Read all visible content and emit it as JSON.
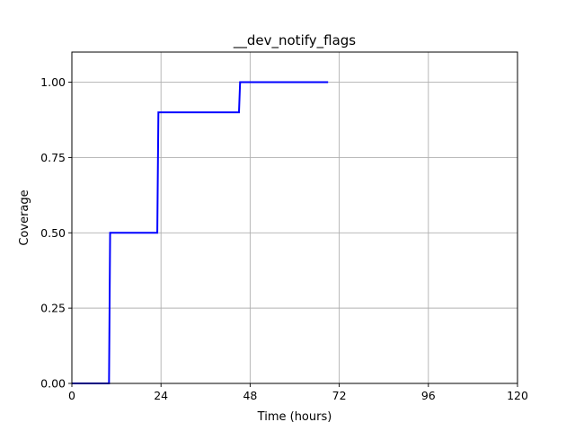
{
  "chart_data": {
    "type": "line",
    "title": "__dev_notify_flags",
    "xlabel": "Time (hours)",
    "ylabel": "Coverage",
    "xlim": [
      0,
      120
    ],
    "ylim": [
      0,
      1.1
    ],
    "xticks": [
      0,
      24,
      48,
      72,
      96,
      120
    ],
    "xtick_labels": [
      "0",
      "24",
      "48",
      "72",
      "96",
      "120"
    ],
    "yticks": [
      0,
      0.25,
      0.5,
      0.75,
      1.0
    ],
    "ytick_labels": [
      "0.00",
      "0.25",
      "0.50",
      "0.75",
      "1.00"
    ],
    "grid": true,
    "series": [
      {
        "color": "#0000ff",
        "x": [
          0,
          10,
          10.3,
          23,
          23.3,
          45,
          45.3,
          69
        ],
        "y": [
          0,
          0,
          0.5,
          0.5,
          0.9,
          0.9,
          1.0,
          1.0
        ]
      }
    ]
  }
}
